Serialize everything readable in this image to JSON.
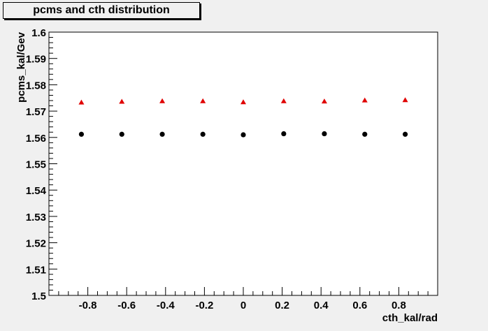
{
  "chart_data": {
    "type": "scatter",
    "title": "pcms and cth distribution",
    "xlabel": "cth_kal/rad",
    "ylabel": "pcms_kal/Gev",
    "xlim": [
      -1.0,
      1.0
    ],
    "ylim": [
      1.5,
      1.6
    ],
    "x_ticks": [
      -0.8,
      -0.6,
      -0.4,
      -0.2,
      0,
      0.2,
      0.4,
      0.6,
      0.8
    ],
    "x_tick_labels": [
      "-0.8",
      "-0.6",
      "-0.4",
      "-0.2",
      "0",
      "0.2",
      "0.4",
      "0.6",
      "0.8"
    ],
    "y_ticks": [
      1.5,
      1.51,
      1.52,
      1.53,
      1.54,
      1.55,
      1.56,
      1.57,
      1.58,
      1.59,
      1.6
    ],
    "y_tick_labels": [
      "1.5",
      "1.51",
      "1.52",
      "1.53",
      "1.54",
      "1.55",
      "1.56",
      "1.57",
      "1.58",
      "1.59",
      "1.6"
    ],
    "grid": false,
    "series": [
      {
        "marker": "triangle",
        "color": "#e00000",
        "x": [
          -0.833,
          -0.625,
          -0.417,
          -0.208,
          0.0,
          0.208,
          0.417,
          0.625,
          0.833
        ],
        "y": [
          1.5733,
          1.5736,
          1.5738,
          1.5738,
          1.5734,
          1.5738,
          1.5737,
          1.5741,
          1.5742
        ]
      },
      {
        "marker": "circle",
        "color": "#000000",
        "x": [
          -0.833,
          -0.625,
          -0.417,
          -0.208,
          0.0,
          0.208,
          0.417,
          0.625,
          0.833
        ],
        "y": [
          1.5612,
          1.5612,
          1.5612,
          1.5612,
          1.561,
          1.5614,
          1.5614,
          1.5612,
          1.5612
        ]
      }
    ]
  }
}
